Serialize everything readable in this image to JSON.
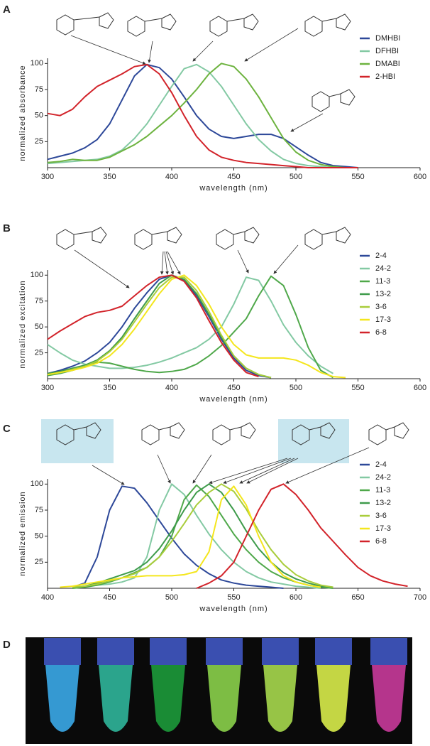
{
  "chart_data": [
    {
      "type": "line",
      "label": "A",
      "x_label": "wavelength (nm)",
      "y_label": "normalized absorbance",
      "x": [
        300,
        310,
        320,
        330,
        340,
        350,
        360,
        370,
        380,
        390,
        400,
        410,
        420,
        430,
        440,
        450,
        460,
        470,
        480,
        490,
        500,
        510,
        520,
        530,
        540,
        550
      ],
      "xlim": [
        300,
        600
      ],
      "xticks": [
        300,
        350,
        400,
        450,
        500,
        550,
        600
      ],
      "ylim": [
        0,
        105
      ],
      "yticks": [
        25,
        50,
        75,
        100
      ],
      "legend": "upper right",
      "series": [
        {
          "name": "DMHBI",
          "color": "#2d4899",
          "values": [
            8,
            11,
            14,
            19,
            27,
            42,
            65,
            88,
            99,
            96,
            85,
            68,
            50,
            37,
            30,
            28,
            30,
            32,
            32,
            28,
            20,
            12,
            5,
            2,
            1,
            0
          ]
        },
        {
          "name": "DFHBI",
          "color": "#83c9a3",
          "values": [
            4,
            5,
            6,
            7,
            8,
            11,
            17,
            28,
            42,
            60,
            78,
            95,
            99,
            92,
            78,
            60,
            42,
            27,
            16,
            8,
            4,
            2,
            1,
            0,
            0,
            0
          ]
        },
        {
          "name": "DMABI",
          "color": "#6db33f",
          "values": [
            5,
            6,
            8,
            7,
            7,
            10,
            16,
            22,
            30,
            40,
            50,
            62,
            75,
            90,
            100,
            97,
            85,
            68,
            48,
            28,
            15,
            7,
            3,
            1,
            0,
            0
          ]
        },
        {
          "name": "2-HBI",
          "color": "#d2232a",
          "values": [
            52,
            50,
            56,
            68,
            78,
            84,
            90,
            97,
            99,
            90,
            72,
            50,
            30,
            17,
            10,
            7,
            5,
            4,
            3,
            2,
            1,
            0,
            0,
            0,
            0,
            0
          ]
        }
      ]
    },
    {
      "type": "line",
      "label": "B",
      "x_label": "wavelength (nm)",
      "y_label": "normalized excitation",
      "x": [
        300,
        310,
        320,
        330,
        340,
        350,
        360,
        370,
        380,
        390,
        400,
        410,
        420,
        430,
        440,
        450,
        460,
        470,
        480,
        490,
        500,
        510,
        520,
        530,
        540
      ],
      "xlim": [
        300,
        600
      ],
      "xticks": [
        300,
        350,
        400,
        450,
        500,
        550,
        600
      ],
      "ylim": [
        0,
        105
      ],
      "yticks": [
        25,
        50,
        75,
        100
      ],
      "legend": "upper right",
      "series": [
        {
          "name": "2-4",
          "color": "#2d4899",
          "values": [
            5,
            8,
            12,
            17,
            25,
            35,
            50,
            68,
            83,
            96,
            100,
            95,
            80,
            60,
            38,
            20,
            8,
            3,
            1,
            null,
            null,
            null,
            null,
            null,
            null
          ]
        },
        {
          "name": "24-2",
          "color": "#83c9a3",
          "values": [
            33,
            25,
            18,
            14,
            12,
            10,
            10,
            11,
            13,
            16,
            20,
            25,
            30,
            38,
            50,
            72,
            98,
            95,
            75,
            52,
            35,
            22,
            12,
            5,
            null
          ]
        },
        {
          "name": "11-3",
          "color": "#4fa84a",
          "values": [
            3,
            5,
            8,
            12,
            16,
            15,
            12,
            9,
            7,
            6,
            7,
            9,
            14,
            22,
            32,
            45,
            58,
            80,
            99,
            90,
            62,
            30,
            8,
            1,
            null
          ]
        },
        {
          "name": "13-2",
          "color": "#3e9b4b",
          "values": [
            5,
            7,
            10,
            13,
            18,
            27,
            40,
            58,
            75,
            92,
            100,
            96,
            82,
            62,
            40,
            22,
            10,
            4,
            1,
            null,
            null,
            null,
            null,
            null,
            null
          ]
        },
        {
          "name": "3-6",
          "color": "#a9cd3b",
          "values": [
            4,
            6,
            9,
            12,
            17,
            26,
            38,
            55,
            72,
            88,
            98,
            98,
            85,
            65,
            42,
            22,
            10,
            4,
            1,
            null,
            null,
            null,
            null,
            null,
            null
          ]
        },
        {
          "name": "17-3",
          "color": "#f4e61d",
          "values": [
            4,
            6,
            8,
            11,
            15,
            22,
            33,
            48,
            65,
            82,
            96,
            100,
            90,
            72,
            50,
            33,
            23,
            20,
            20,
            20,
            18,
            13,
            6,
            2,
            1
          ]
        },
        {
          "name": "6-8",
          "color": "#d2232a",
          "values": [
            38,
            46,
            53,
            60,
            64,
            66,
            70,
            80,
            90,
            98,
            100,
            94,
            78,
            56,
            35,
            18,
            6,
            2,
            null,
            null,
            null,
            null,
            null,
            null,
            null
          ]
        }
      ]
    },
    {
      "type": "line",
      "label": "C",
      "x_label": "wavelength (nm)",
      "y_label": "normalized emission",
      "x": [
        400,
        410,
        420,
        430,
        440,
        450,
        460,
        470,
        480,
        490,
        500,
        510,
        520,
        530,
        540,
        550,
        560,
        570,
        580,
        590,
        600,
        610,
        620,
        630,
        640,
        650,
        660,
        670,
        680,
        690,
        700
      ],
      "xlim": [
        400,
        700
      ],
      "xticks": [
        400,
        450,
        500,
        550,
        600,
        650,
        700
      ],
      "ylim": [
        0,
        105
      ],
      "yticks": [
        25,
        50,
        75,
        100
      ],
      "legend": "upper right",
      "series": [
        {
          "name": "2-4",
          "color": "#2d4899",
          "values": [
            null,
            null,
            1,
            5,
            30,
            75,
            98,
            96,
            82,
            65,
            48,
            33,
            22,
            14,
            8,
            5,
            3,
            2,
            1,
            0,
            null,
            null,
            null,
            null,
            null,
            null,
            null,
            null,
            null,
            null,
            null
          ]
        },
        {
          "name": "24-2",
          "color": "#83c9a3",
          "values": [
            null,
            null,
            null,
            2,
            3,
            4,
            6,
            10,
            30,
            75,
            100,
            90,
            70,
            52,
            37,
            25,
            16,
            10,
            6,
            4,
            2,
            1,
            0,
            null,
            null,
            null,
            null,
            null,
            null,
            null,
            null
          ]
        },
        {
          "name": "11-3",
          "color": "#4fa84a",
          "values": [
            null,
            null,
            0,
            1,
            3,
            6,
            10,
            15,
            20,
            30,
            50,
            85,
            99,
            88,
            70,
            52,
            37,
            25,
            16,
            10,
            6,
            3,
            1,
            0,
            null,
            null,
            null,
            null,
            null,
            null,
            null
          ]
        },
        {
          "name": "13-2",
          "color": "#3e9b4b",
          "values": [
            null,
            null,
            1,
            2,
            5,
            9,
            13,
            17,
            25,
            38,
            55,
            75,
            92,
            100,
            92,
            75,
            55,
            38,
            25,
            15,
            9,
            5,
            2,
            1,
            null,
            null,
            null,
            null,
            null,
            null,
            null
          ]
        },
        {
          "name": "3-6",
          "color": "#a9cd3b",
          "values": [
            null,
            null,
            1,
            2,
            4,
            7,
            10,
            14,
            20,
            30,
            45,
            62,
            80,
            92,
            100,
            93,
            76,
            55,
            37,
            23,
            13,
            7,
            3,
            1,
            null,
            null,
            null,
            null,
            null,
            null,
            null
          ]
        },
        {
          "name": "17-3",
          "color": "#f4e61d",
          "values": [
            null,
            1,
            2,
            4,
            6,
            8,
            10,
            11,
            12,
            12,
            12,
            13,
            16,
            35,
            85,
            98,
            80,
            50,
            25,
            12,
            6,
            3,
            1,
            null,
            null,
            null,
            null,
            null,
            null,
            null,
            null
          ]
        },
        {
          "name": "6-8",
          "color": "#d2232a",
          "values": [
            null,
            null,
            null,
            null,
            null,
            null,
            null,
            null,
            null,
            null,
            null,
            null,
            0,
            5,
            12,
            25,
            50,
            75,
            95,
            100,
            90,
            75,
            58,
            45,
            32,
            20,
            12,
            7,
            4,
            2,
            null
          ]
        }
      ]
    }
  ],
  "panel_d": {
    "label": "D"
  }
}
